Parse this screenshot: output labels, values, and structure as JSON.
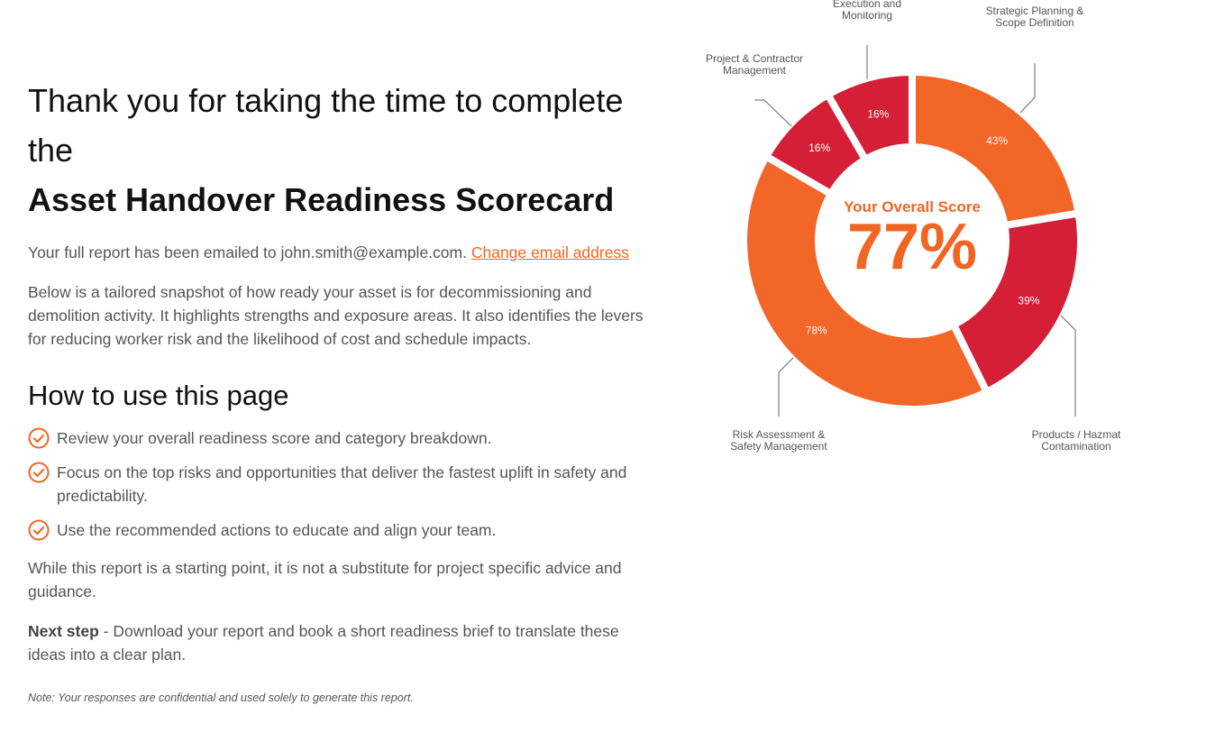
{
  "intro": {
    "line1": "Thank you for taking the time to complete the",
    "title": "Asset Handover Readiness Scorecard",
    "emailed": "Your full report has been emailed to john.smith@example.com.",
    "change_email": "Change email address",
    "snapshot": "Below is a tailored snapshot of how ready your asset is for decommissioning and demolition activity. It highlights strengths and exposure areas. It also identifies the levers for reducing worker risk and the likelihood of cost and schedule impacts."
  },
  "how_to": {
    "heading": "How to use this page",
    "items": [
      "Review your overall readiness score and category breakdown.",
      "Focus on the top risks and opportunities that deliver the fastest uplift in safety and predictability.",
      "Use the recommended actions to educate and align your team."
    ],
    "check_icon": "check-circle-icon"
  },
  "disclaimer": "While this report is a starting point, it is not a substitute for project specific advice and guidance.",
  "next_step": {
    "label": "Next step",
    "text": " - Download your report and book a short readiness brief to translate these ideas into a clear plan."
  },
  "note": "Note: Your responses are confidential and used solely to generate this report.",
  "colors": {
    "accent": "#f26522",
    "orange": "#f26628",
    "red": "#d41f36"
  },
  "chart_data": {
    "type": "pie",
    "title": "Your Overall Score",
    "overall": "77%",
    "categories": [
      "Strategic Planning & Scope Definition",
      "Products / Hazmat Contamination",
      "Risk Assessment & Safety Management",
      "Project & Contractor Management",
      "Execution and Monitoring"
    ],
    "values": [
      43,
      39,
      78,
      16,
      16
    ],
    "labels": [
      "43%",
      "39%",
      "78%",
      "16%",
      "16%"
    ],
    "colors": [
      "#f26628",
      "#d41f36",
      "#f26628",
      "#d41f36",
      "#d41f36"
    ],
    "donut": true
  }
}
